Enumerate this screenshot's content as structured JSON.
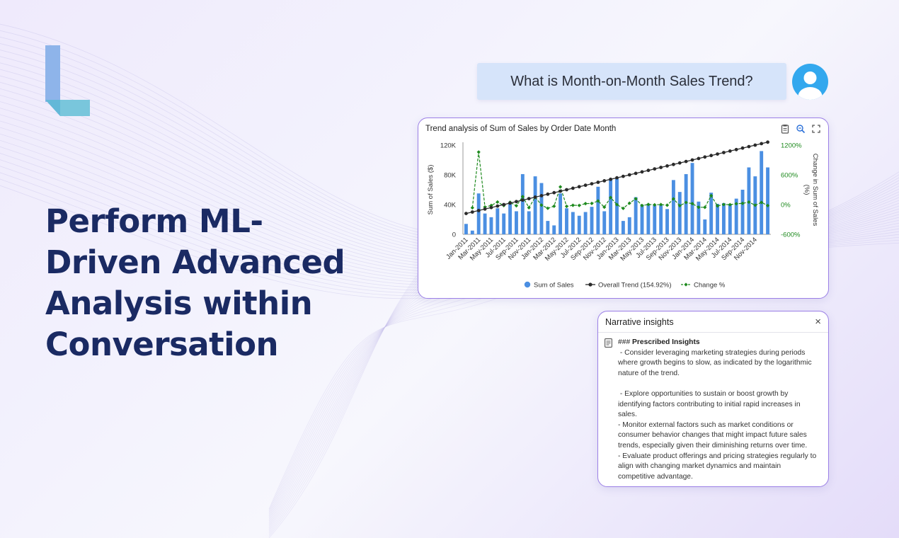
{
  "headline": "Perform ML-Driven Advanced Analysis within Conversation",
  "query": "What is Month-on-Month Sales Trend?",
  "chart_card": {
    "title": "Trend analysis of Sum of Sales by Order Date Month",
    "tools": [
      "clipboard-icon",
      "zoom-icon",
      "fullscreen-icon"
    ]
  },
  "chart_data": {
    "type": "bar",
    "title": "Trend analysis of Sum of Sales by Order Date Month",
    "ylabel": "Sum of Sales ($)",
    "y2label": "Change in Sum of Sales (%)",
    "ylim": [
      0,
      120000
    ],
    "y2lim": [
      -600,
      1200
    ],
    "y_ticks": [
      "0",
      "40K",
      "80K",
      "120K"
    ],
    "y2_ticks": [
      "-600%",
      "0%",
      "600%",
      "1200%"
    ],
    "x_tick_labels": [
      "Jan-2011",
      "Mar-2011",
      "May-2011",
      "Jul-2011",
      "Sep-2011",
      "Nov-2011",
      "Jan-2012",
      "Mar-2012",
      "May-2012",
      "Jul-2012",
      "Sep-2012",
      "Nov-2012",
      "Jan-2013",
      "Mar-2013",
      "May-2013",
      "Jul-2013",
      "Sep-2013",
      "Nov-2013",
      "Jan-2014",
      "Mar-2014",
      "May-2014",
      "Jul-2014",
      "Sep-2014",
      "Nov-2014"
    ],
    "series": [
      {
        "name": "Sum of Sales",
        "type": "bar",
        "color": "#4b8fe2",
        "values": [
          14000,
          5000,
          55000,
          28000,
          23000,
          35000,
          28000,
          41000,
          31000,
          81000,
          31000,
          78000,
          69000,
          18000,
          12000,
          55000,
          35000,
          30000,
          25000,
          30000,
          37000,
          64000,
          31000,
          75000,
          75000,
          18000,
          23000,
          50000,
          40000,
          41000,
          39000,
          39000,
          34000,
          73000,
          57000,
          81000,
          96000,
          44000,
          20000,
          56000,
          41000,
          42000,
          41000,
          48000,
          60000,
          90000,
          78000,
          112000,
          90000
        ]
      },
      {
        "name": "Overall Trend (154.92%)",
        "type": "line",
        "color": "#2a2a2a",
        "values": [
          28000,
          30000,
          32000,
          34000,
          36000,
          38000,
          40000,
          42000,
          44000,
          46000,
          48000,
          50000,
          52000,
          54000,
          56000,
          58000,
          60000,
          62000,
          64000,
          66000,
          68000,
          70000,
          72000,
          74000,
          76000,
          78000,
          80000,
          82000,
          84000,
          86000,
          88000,
          90000,
          92000,
          94000,
          96000,
          98000,
          100000,
          102000,
          104000,
          106000,
          108000,
          110000,
          112000,
          114000,
          116000,
          118000,
          120000,
          122000,
          124000
        ]
      },
      {
        "name": "Change %",
        "type": "line",
        "color": "#1e8a1e",
        "values": [
          null,
          -64,
          1060,
          -49,
          -18,
          52,
          -20,
          46,
          -24,
          161,
          -62,
          152,
          -12,
          -74,
          -33,
          358,
          -36,
          -14,
          -17,
          20,
          23,
          73,
          -52,
          142,
          0,
          -76,
          28,
          117,
          -20,
          3,
          -5,
          0,
          -13,
          115,
          -22,
          42,
          19,
          -54,
          -55,
          180,
          -27,
          2,
          -2,
          17,
          25,
          50,
          -13,
          44,
          -20
        ]
      }
    ],
    "legend": [
      "Sum of Sales",
      "Overall Trend (154.92%)",
      "Change %"
    ],
    "legend_position": "bottom",
    "grid": false
  },
  "insights": {
    "title": "Narrative insights",
    "close_label": "×",
    "heading_prefix": "### ",
    "heading": "Prescribed Insights",
    "lines": [
      " - Consider leveraging marketing strategies during periods",
      "where growth begins to slow, as indicated by the logarithmic",
      "nature of the trend.",
      "",
      " - Explore opportunities to sustain or boost growth by",
      "identifying factors contributing to initial rapid increases in",
      "sales.",
      "- Monitor external factors such as market conditions or",
      "consumer behavior changes that might impact future sales",
      "trends, especially given their diminishing returns over time.",
      "- Evaluate product offerings and pricing strategies regularly to",
      "align with changing market dynamics and maintain",
      "competitive advantage."
    ]
  }
}
